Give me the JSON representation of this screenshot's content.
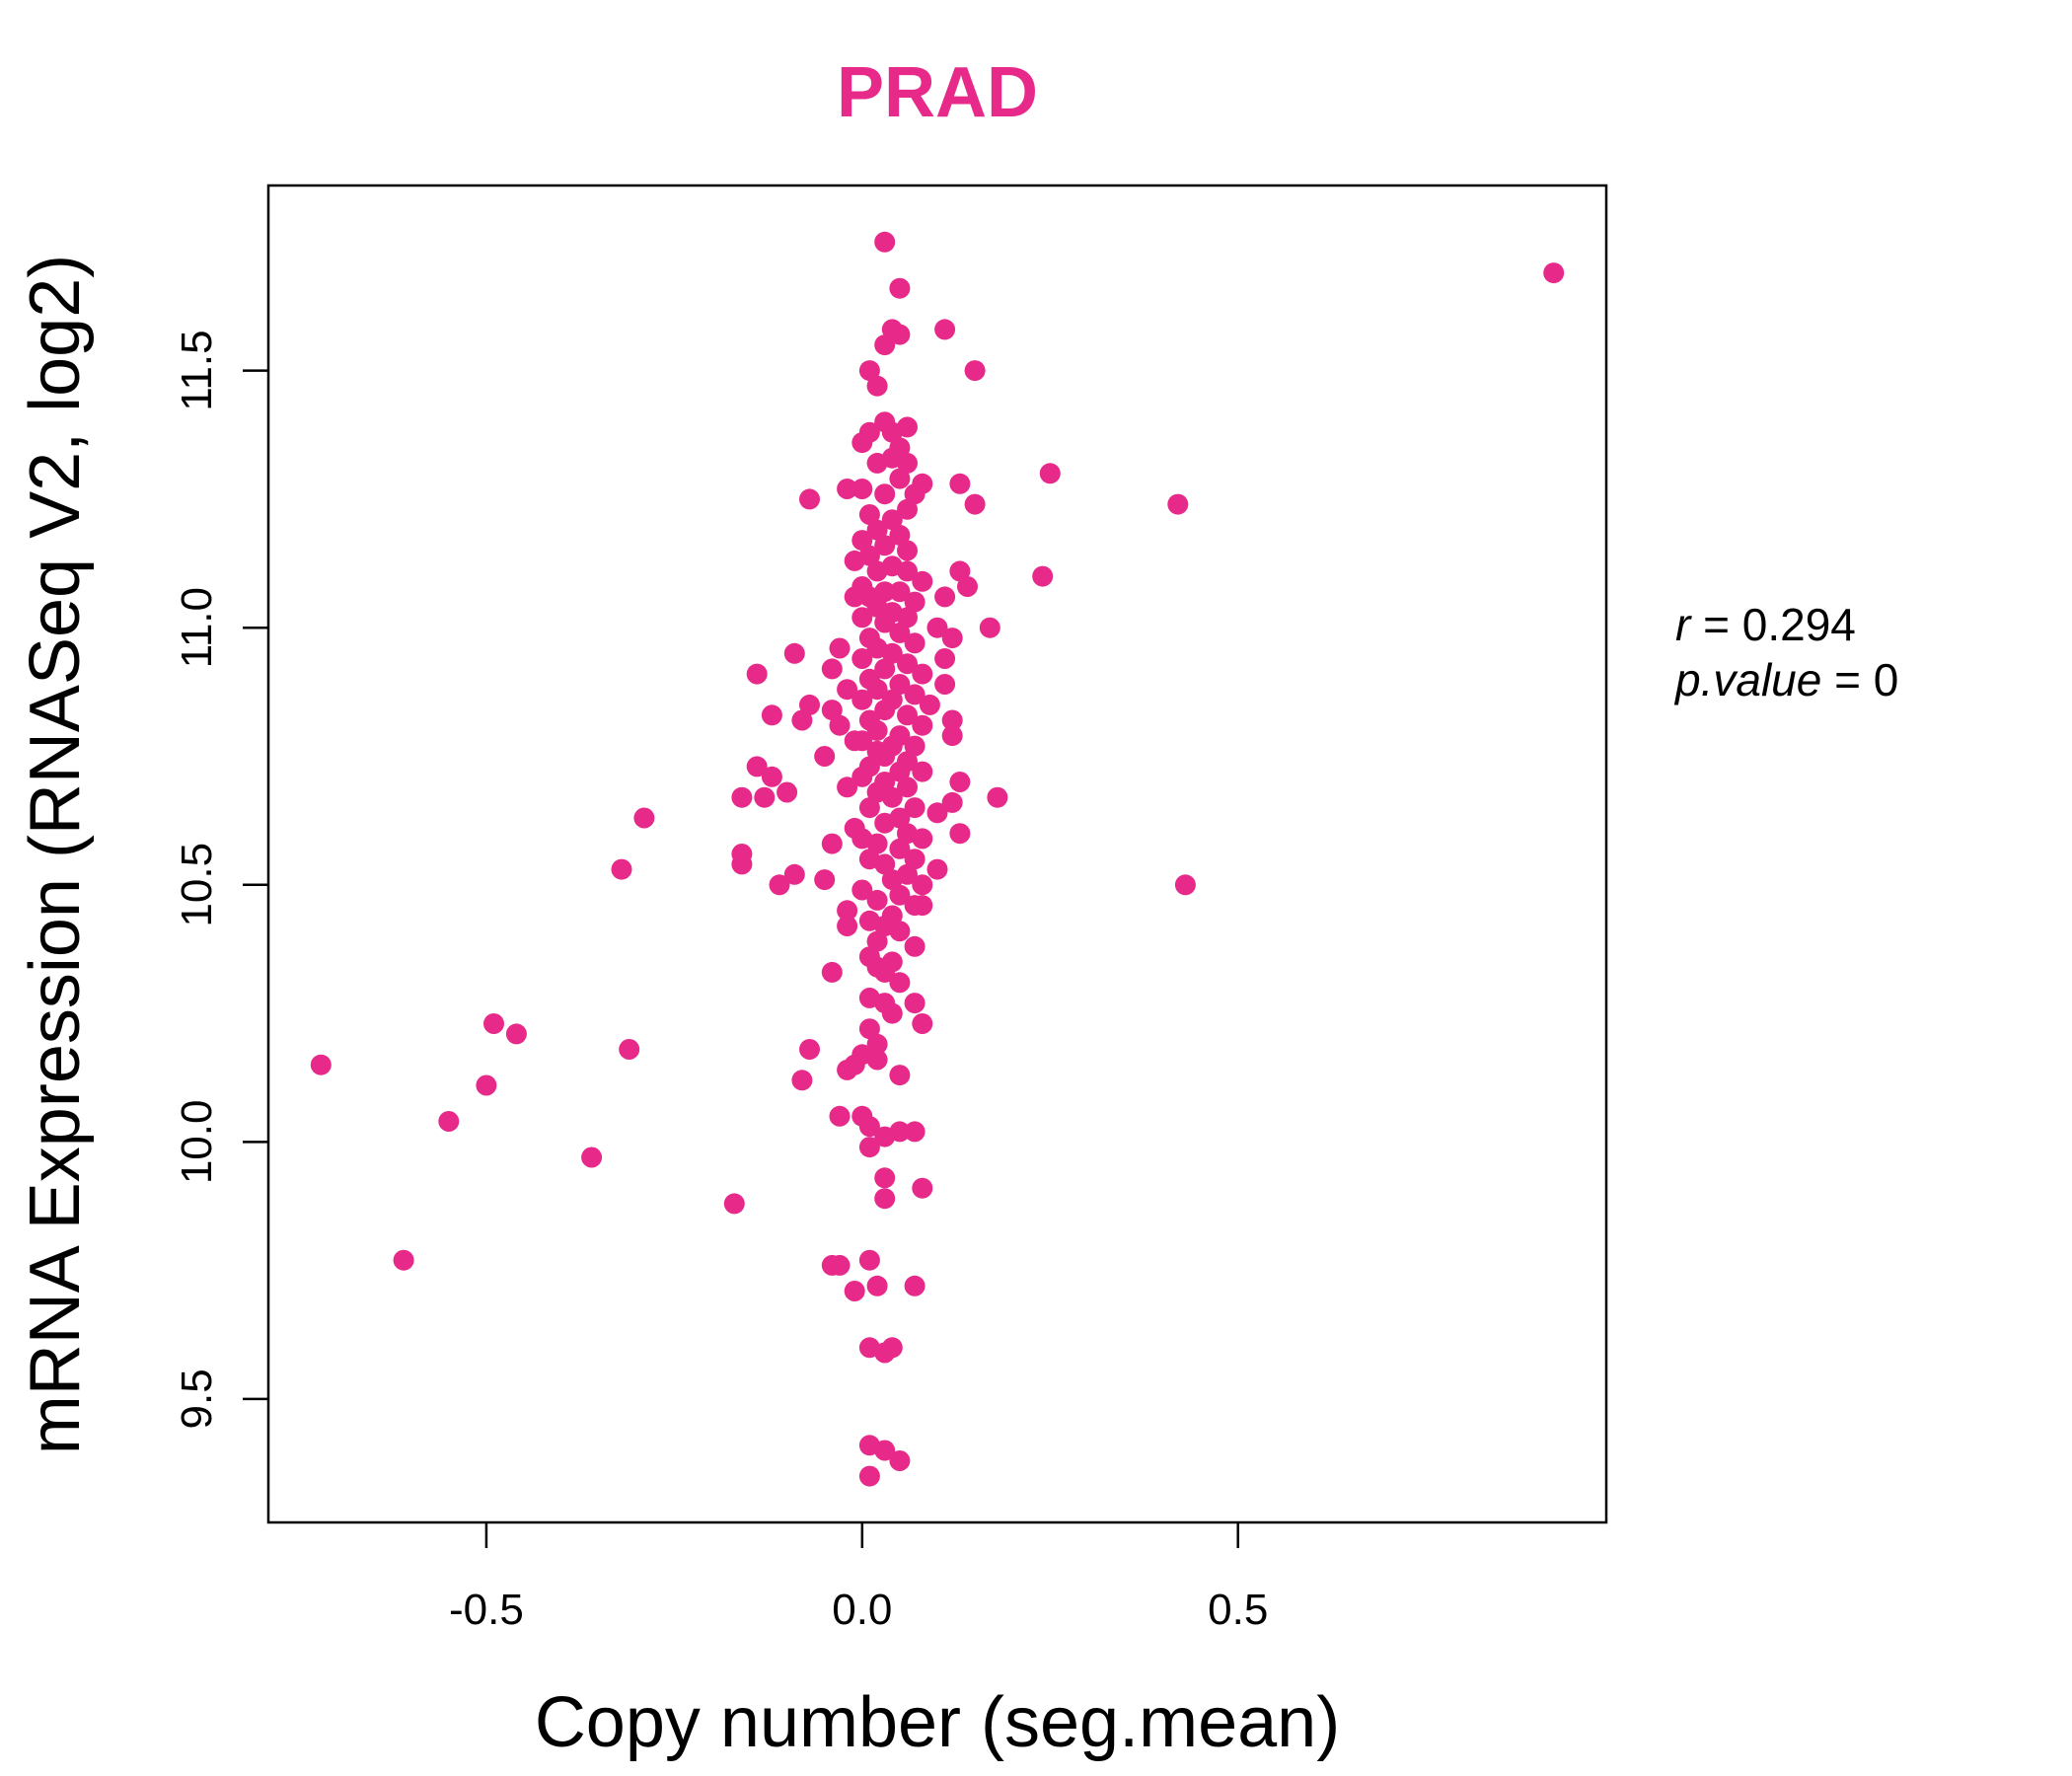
{
  "chart_data": {
    "type": "scatter",
    "title": "PRAD",
    "title_color": "#E72A8A",
    "point_color": "#E72A8A",
    "xlabel": "Copy number (seg.mean)",
    "ylabel": "mRNA Expression (RNASeq V2, log2)",
    "xlim": [
      -0.79,
      0.99
    ],
    "ylim": [
      9.26,
      11.86
    ],
    "x_ticks": [
      -0.5,
      0.0,
      0.5
    ],
    "x_tick_labels": [
      "-0.5",
      "0.0",
      "0.5"
    ],
    "y_ticks": [
      9.5,
      10.0,
      10.5,
      11.0,
      11.5
    ],
    "y_tick_labels": [
      "9.5",
      "10.0",
      "10.5",
      "11.0",
      "11.5"
    ],
    "stats": {
      "r_label": "r",
      "r_value": "0.294",
      "p_label": "p.value",
      "p_value": "0"
    },
    "points": [
      [
        0.92,
        11.69
      ],
      [
        0.03,
        11.75
      ],
      [
        0.05,
        11.66
      ],
      [
        0.11,
        11.58
      ],
      [
        0.04,
        11.58
      ],
      [
        0.05,
        11.57
      ],
      [
        0.03,
        11.55
      ],
      [
        0.15,
        11.5
      ],
      [
        0.01,
        11.5
      ],
      [
        0.02,
        11.47
      ],
      [
        0.03,
        11.4
      ],
      [
        0.06,
        11.39
      ],
      [
        0.04,
        11.38
      ],
      [
        0.01,
        11.38
      ],
      [
        0.0,
        11.36
      ],
      [
        0.05,
        11.35
      ],
      [
        0.04,
        11.33
      ],
      [
        0.02,
        11.32
      ],
      [
        0.06,
        11.32
      ],
      [
        0.25,
        11.3
      ],
      [
        0.05,
        11.29
      ],
      [
        0.08,
        11.28
      ],
      [
        0.13,
        11.28
      ],
      [
        0.0,
        11.27
      ],
      [
        -0.02,
        11.27
      ],
      [
        0.03,
        11.26
      ],
      [
        0.07,
        11.26
      ],
      [
        -0.07,
        11.25
      ],
      [
        0.15,
        11.24
      ],
      [
        0.42,
        11.24
      ],
      [
        0.06,
        11.23
      ],
      [
        0.01,
        11.22
      ],
      [
        0.04,
        11.21
      ],
      [
        0.02,
        11.19
      ],
      [
        0.05,
        11.18
      ],
      [
        0.0,
        11.17
      ],
      [
        0.03,
        11.16
      ],
      [
        0.06,
        11.15
      ],
      [
        0.01,
        11.14
      ],
      [
        -0.01,
        11.13
      ],
      [
        0.04,
        11.12
      ],
      [
        0.02,
        11.11
      ],
      [
        0.13,
        11.11
      ],
      [
        0.06,
        11.11
      ],
      [
        0.24,
        11.1
      ],
      [
        0.08,
        11.09
      ],
      [
        0.0,
        11.08
      ],
      [
        0.14,
        11.08
      ],
      [
        0.03,
        11.07
      ],
      [
        0.05,
        11.07
      ],
      [
        0.01,
        11.06
      ],
      [
        -0.01,
        11.06
      ],
      [
        0.11,
        11.06
      ],
      [
        0.07,
        11.05
      ],
      [
        0.02,
        11.04
      ],
      [
        0.04,
        11.03
      ],
      [
        0.0,
        11.02
      ],
      [
        0.06,
        11.02
      ],
      [
        0.03,
        11.01
      ],
      [
        0.17,
        11.0
      ],
      [
        0.1,
        11.0
      ],
      [
        0.05,
        10.99
      ],
      [
        0.01,
        10.98
      ],
      [
        0.12,
        10.98
      ],
      [
        0.07,
        10.97
      ],
      [
        -0.03,
        10.96
      ],
      [
        0.02,
        10.96
      ],
      [
        0.04,
        10.95
      ],
      [
        -0.09,
        10.95
      ],
      [
        0.0,
        10.94
      ],
      [
        0.11,
        10.94
      ],
      [
        0.06,
        10.93
      ],
      [
        -0.04,
        10.92
      ],
      [
        0.03,
        10.92
      ],
      [
        0.08,
        10.91
      ],
      [
        -0.14,
        10.91
      ],
      [
        0.01,
        10.9
      ],
      [
        0.05,
        10.89
      ],
      [
        0.11,
        10.89
      ],
      [
        -0.02,
        10.88
      ],
      [
        0.02,
        10.88
      ],
      [
        0.07,
        10.87
      ],
      [
        0.0,
        10.86
      ],
      [
        0.04,
        10.86
      ],
      [
        -0.07,
        10.85
      ],
      [
        0.09,
        10.85
      ],
      [
        -0.04,
        10.84
      ],
      [
        0.03,
        10.84
      ],
      [
        -0.12,
        10.83
      ],
      [
        0.06,
        10.83
      ],
      [
        -0.08,
        10.82
      ],
      [
        0.01,
        10.82
      ],
      [
        0.12,
        10.82
      ],
      [
        0.08,
        10.81
      ],
      [
        -0.03,
        10.81
      ],
      [
        0.02,
        10.8
      ],
      [
        0.05,
        10.79
      ],
      [
        0.12,
        10.79
      ],
      [
        0.0,
        10.78
      ],
      [
        -0.01,
        10.78
      ],
      [
        0.04,
        10.77
      ],
      [
        0.07,
        10.77
      ],
      [
        0.02,
        10.76
      ],
      [
        0.03,
        10.75
      ],
      [
        -0.05,
        10.75
      ],
      [
        0.06,
        10.74
      ],
      [
        0.01,
        10.73
      ],
      [
        -0.14,
        10.73
      ],
      [
        0.05,
        10.72
      ],
      [
        0.08,
        10.72
      ],
      [
        -0.12,
        10.71
      ],
      [
        0.0,
        10.71
      ],
      [
        0.03,
        10.7
      ],
      [
        0.13,
        10.7
      ],
      [
        -0.02,
        10.69
      ],
      [
        0.06,
        10.69
      ],
      [
        -0.1,
        10.68
      ],
      [
        0.02,
        10.68
      ],
      [
        -0.16,
        10.67
      ],
      [
        -0.13,
        10.67
      ],
      [
        0.04,
        10.67
      ],
      [
        0.18,
        10.67
      ],
      [
        0.12,
        10.66
      ],
      [
        0.07,
        10.65
      ],
      [
        0.01,
        10.65
      ],
      [
        0.1,
        10.64
      ],
      [
        0.05,
        10.63
      ],
      [
        -0.29,
        10.63
      ],
      [
        0.03,
        10.62
      ],
      [
        -0.01,
        10.61
      ],
      [
        0.06,
        10.6
      ],
      [
        0.13,
        10.6
      ],
      [
        0.0,
        10.59
      ],
      [
        0.08,
        10.59
      ],
      [
        -0.04,
        10.58
      ],
      [
        0.02,
        10.58
      ],
      [
        0.05,
        10.57
      ],
      [
        -0.16,
        10.56
      ],
      [
        0.07,
        10.55
      ],
      [
        0.01,
        10.55
      ],
      [
        -0.16,
        10.54
      ],
      [
        0.03,
        10.54
      ],
      [
        0.1,
        10.53
      ],
      [
        -0.32,
        10.53
      ],
      [
        0.06,
        10.52
      ],
      [
        -0.09,
        10.52
      ],
      [
        0.04,
        10.51
      ],
      [
        -0.05,
        10.51
      ],
      [
        0.08,
        10.5
      ],
      [
        -0.11,
        10.5
      ],
      [
        0.43,
        10.5
      ],
      [
        0.0,
        10.49
      ],
      [
        0.05,
        10.48
      ],
      [
        0.02,
        10.47
      ],
      [
        0.07,
        10.46
      ],
      [
        0.08,
        10.46
      ],
      [
        -0.02,
        10.45
      ],
      [
        0.04,
        10.44
      ],
      [
        0.01,
        10.43
      ],
      [
        0.03,
        10.42
      ],
      [
        -0.02,
        10.42
      ],
      [
        0.05,
        10.41
      ],
      [
        0.02,
        10.39
      ],
      [
        0.07,
        10.38
      ],
      [
        0.01,
        10.36
      ],
      [
        0.04,
        10.35
      ],
      [
        0.02,
        10.34
      ],
      [
        0.03,
        10.33
      ],
      [
        -0.04,
        10.33
      ],
      [
        0.05,
        10.31
      ],
      [
        0.01,
        10.28
      ],
      [
        0.03,
        10.27
      ],
      [
        0.07,
        10.27
      ],
      [
        0.04,
        10.25
      ],
      [
        0.08,
        10.23
      ],
      [
        -0.49,
        10.23
      ],
      [
        0.01,
        10.22
      ],
      [
        -0.46,
        10.21
      ],
      [
        0.02,
        10.19
      ],
      [
        -0.31,
        10.18
      ],
      [
        -0.07,
        10.18
      ],
      [
        0.0,
        10.17
      ],
      [
        0.02,
        10.16
      ],
      [
        -0.72,
        10.15
      ],
      [
        -0.02,
        10.14
      ],
      [
        -0.01,
        10.15
      ],
      [
        0.05,
        10.13
      ],
      [
        -0.08,
        10.12
      ],
      [
        -0.5,
        10.11
      ],
      [
        0.0,
        10.05
      ],
      [
        -0.03,
        10.05
      ],
      [
        -0.55,
        10.04
      ],
      [
        0.01,
        10.03
      ],
      [
        0.05,
        10.02
      ],
      [
        0.07,
        10.02
      ],
      [
        0.03,
        10.01
      ],
      [
        0.01,
        9.99
      ],
      [
        -0.36,
        9.97
      ],
      [
        0.03,
        9.93
      ],
      [
        0.08,
        9.91
      ],
      [
        0.03,
        9.89
      ],
      [
        -0.17,
        9.88
      ],
      [
        -0.61,
        9.77
      ],
      [
        0.01,
        9.77
      ],
      [
        -0.04,
        9.76
      ],
      [
        -0.03,
        9.76
      ],
      [
        0.02,
        9.72
      ],
      [
        0.07,
        9.72
      ],
      [
        -0.01,
        9.71
      ],
      [
        0.01,
        9.6
      ],
      [
        0.04,
        9.6
      ],
      [
        0.03,
        9.59
      ],
      [
        0.01,
        9.41
      ],
      [
        0.03,
        9.4
      ],
      [
        0.05,
        9.38
      ],
      [
        0.01,
        9.35
      ]
    ]
  }
}
